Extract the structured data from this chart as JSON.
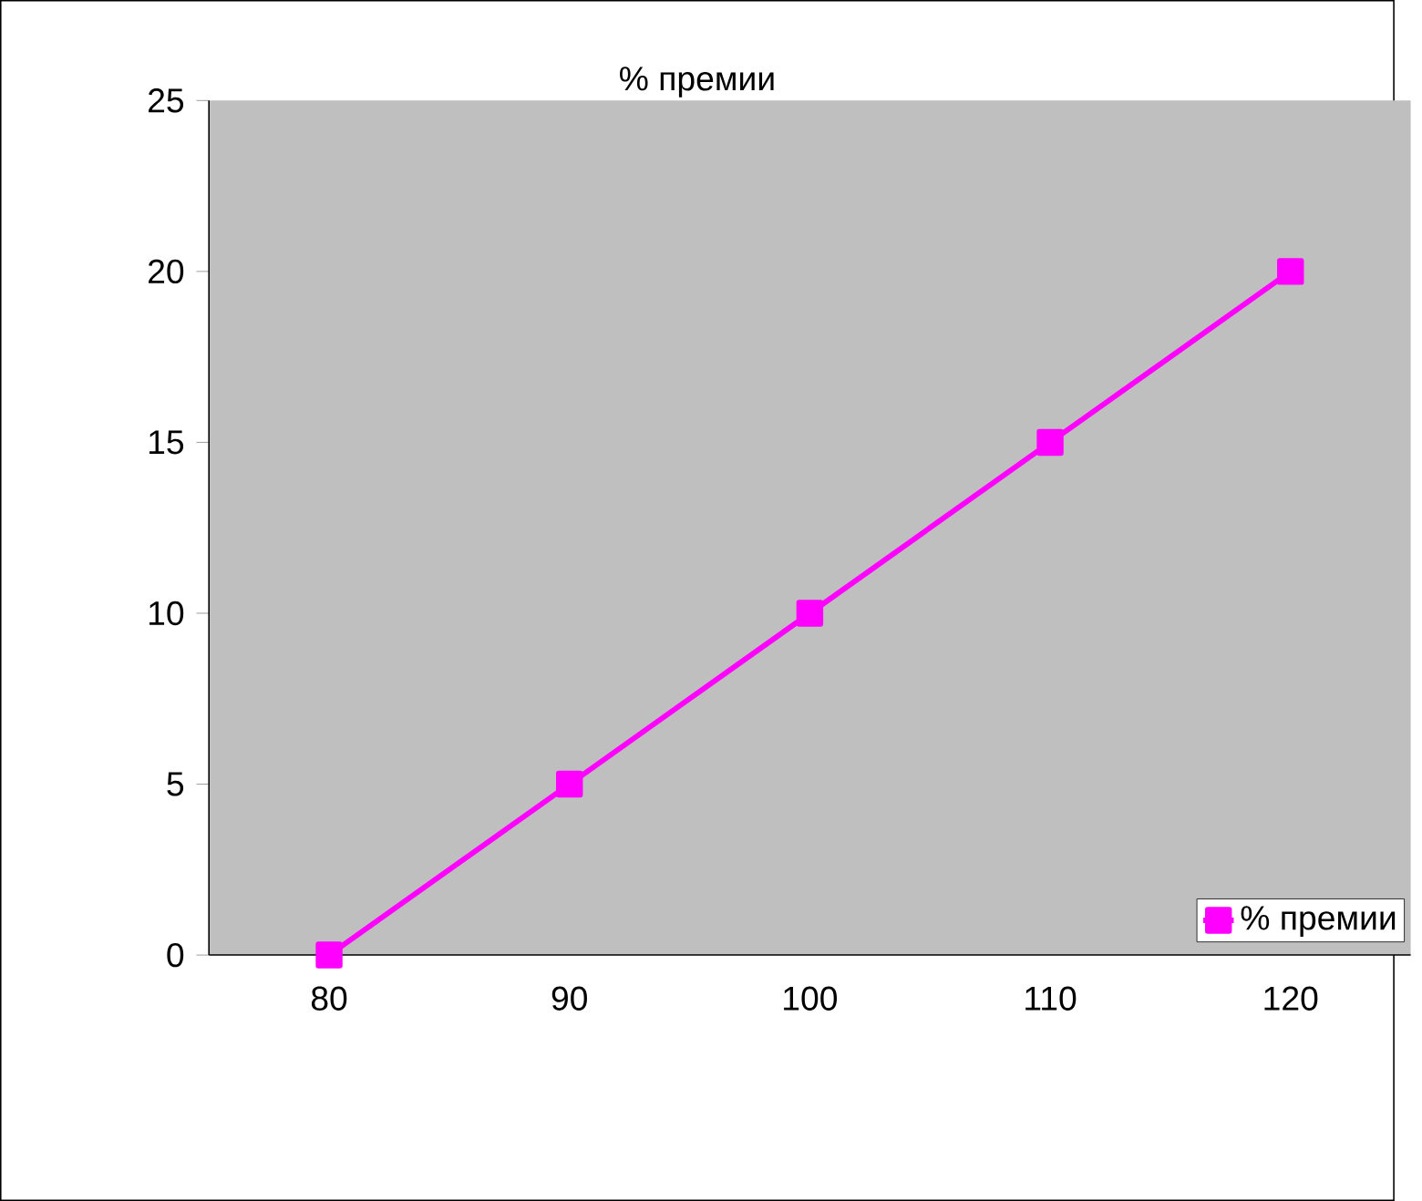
{
  "chart_data": {
    "type": "line",
    "title": "% премии",
    "categories": [
      "80",
      "90",
      "100",
      "110",
      "120"
    ],
    "series": [
      {
        "name": "% премии",
        "color": "#ff00ff",
        "values": [
          0,
          5,
          10,
          15,
          20
        ]
      }
    ],
    "ylim": [
      0,
      25
    ],
    "yticks": [
      0,
      5,
      10,
      15,
      20,
      25
    ],
    "grid": false,
    "legend": "bottom right",
    "marker": "square",
    "line_style": "solid"
  }
}
